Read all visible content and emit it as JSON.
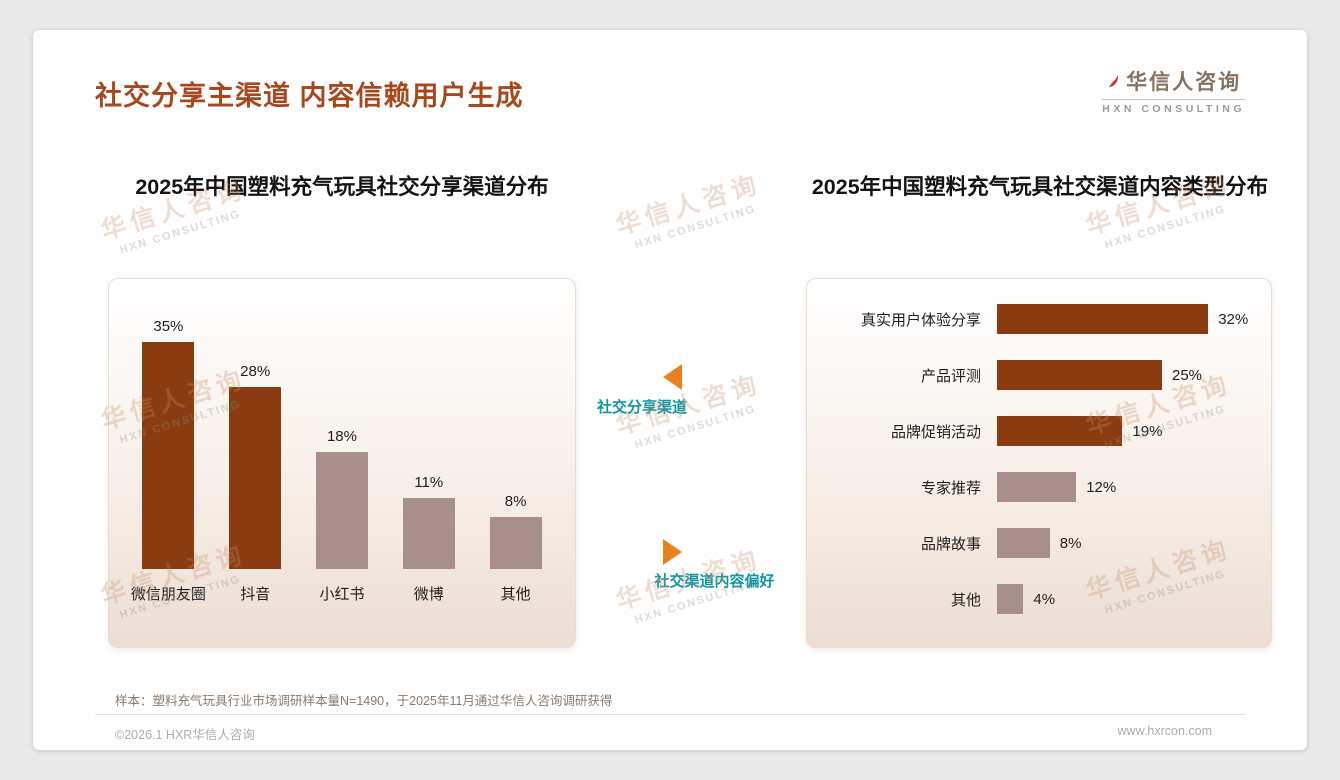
{
  "page": {
    "title": "社交分享主渠道 内容信赖用户生成",
    "logo": {
      "name": "华信人咨询",
      "sub": "HXN CONSULTING"
    },
    "sample_note": "样本：塑料充气玩具行业市场调研样本量N=1490，于2025年11月通过华信人咨询调研获得",
    "footer_left": "©2026.1 HXR华信人咨询",
    "footer_right": "www.hxrcon.com"
  },
  "annotations": {
    "left_marker": "社交分享渠道",
    "right_marker": "社交渠道内容偏好"
  },
  "watermark": {
    "line1": "华信人咨询",
    "line2": "HXN CONSULTING"
  },
  "colors": {
    "title": "#A8481C",
    "bar_dark": "#8A3B10",
    "bar_muted": "#A98F8B",
    "teal": "#0E96A0",
    "orange": "#E8821E"
  },
  "chart_data": [
    {
      "type": "bar",
      "title": "2025年中国塑料充气玩具社交分享渠道分布",
      "categories": [
        "微信朋友圈",
        "抖音",
        "小红书",
        "微博",
        "其他"
      ],
      "values": [
        35,
        28,
        18,
        11,
        8
      ],
      "unit": "%",
      "highlight_count": 2,
      "ylim": [
        0,
        40
      ],
      "legend": "none",
      "grid": false
    },
    {
      "type": "bar-horizontal",
      "title": "2025年中国塑料充气玩具社交渠道内容类型分布",
      "categories": [
        "真实用户体验分享",
        "产品评测",
        "品牌促销活动",
        "专家推荐",
        "品牌故事",
        "其他"
      ],
      "values": [
        32,
        25,
        19,
        12,
        8,
        4
      ],
      "unit": "%",
      "highlight_count": 3,
      "xlim": [
        0,
        35
      ],
      "legend": "none",
      "grid": false
    }
  ]
}
